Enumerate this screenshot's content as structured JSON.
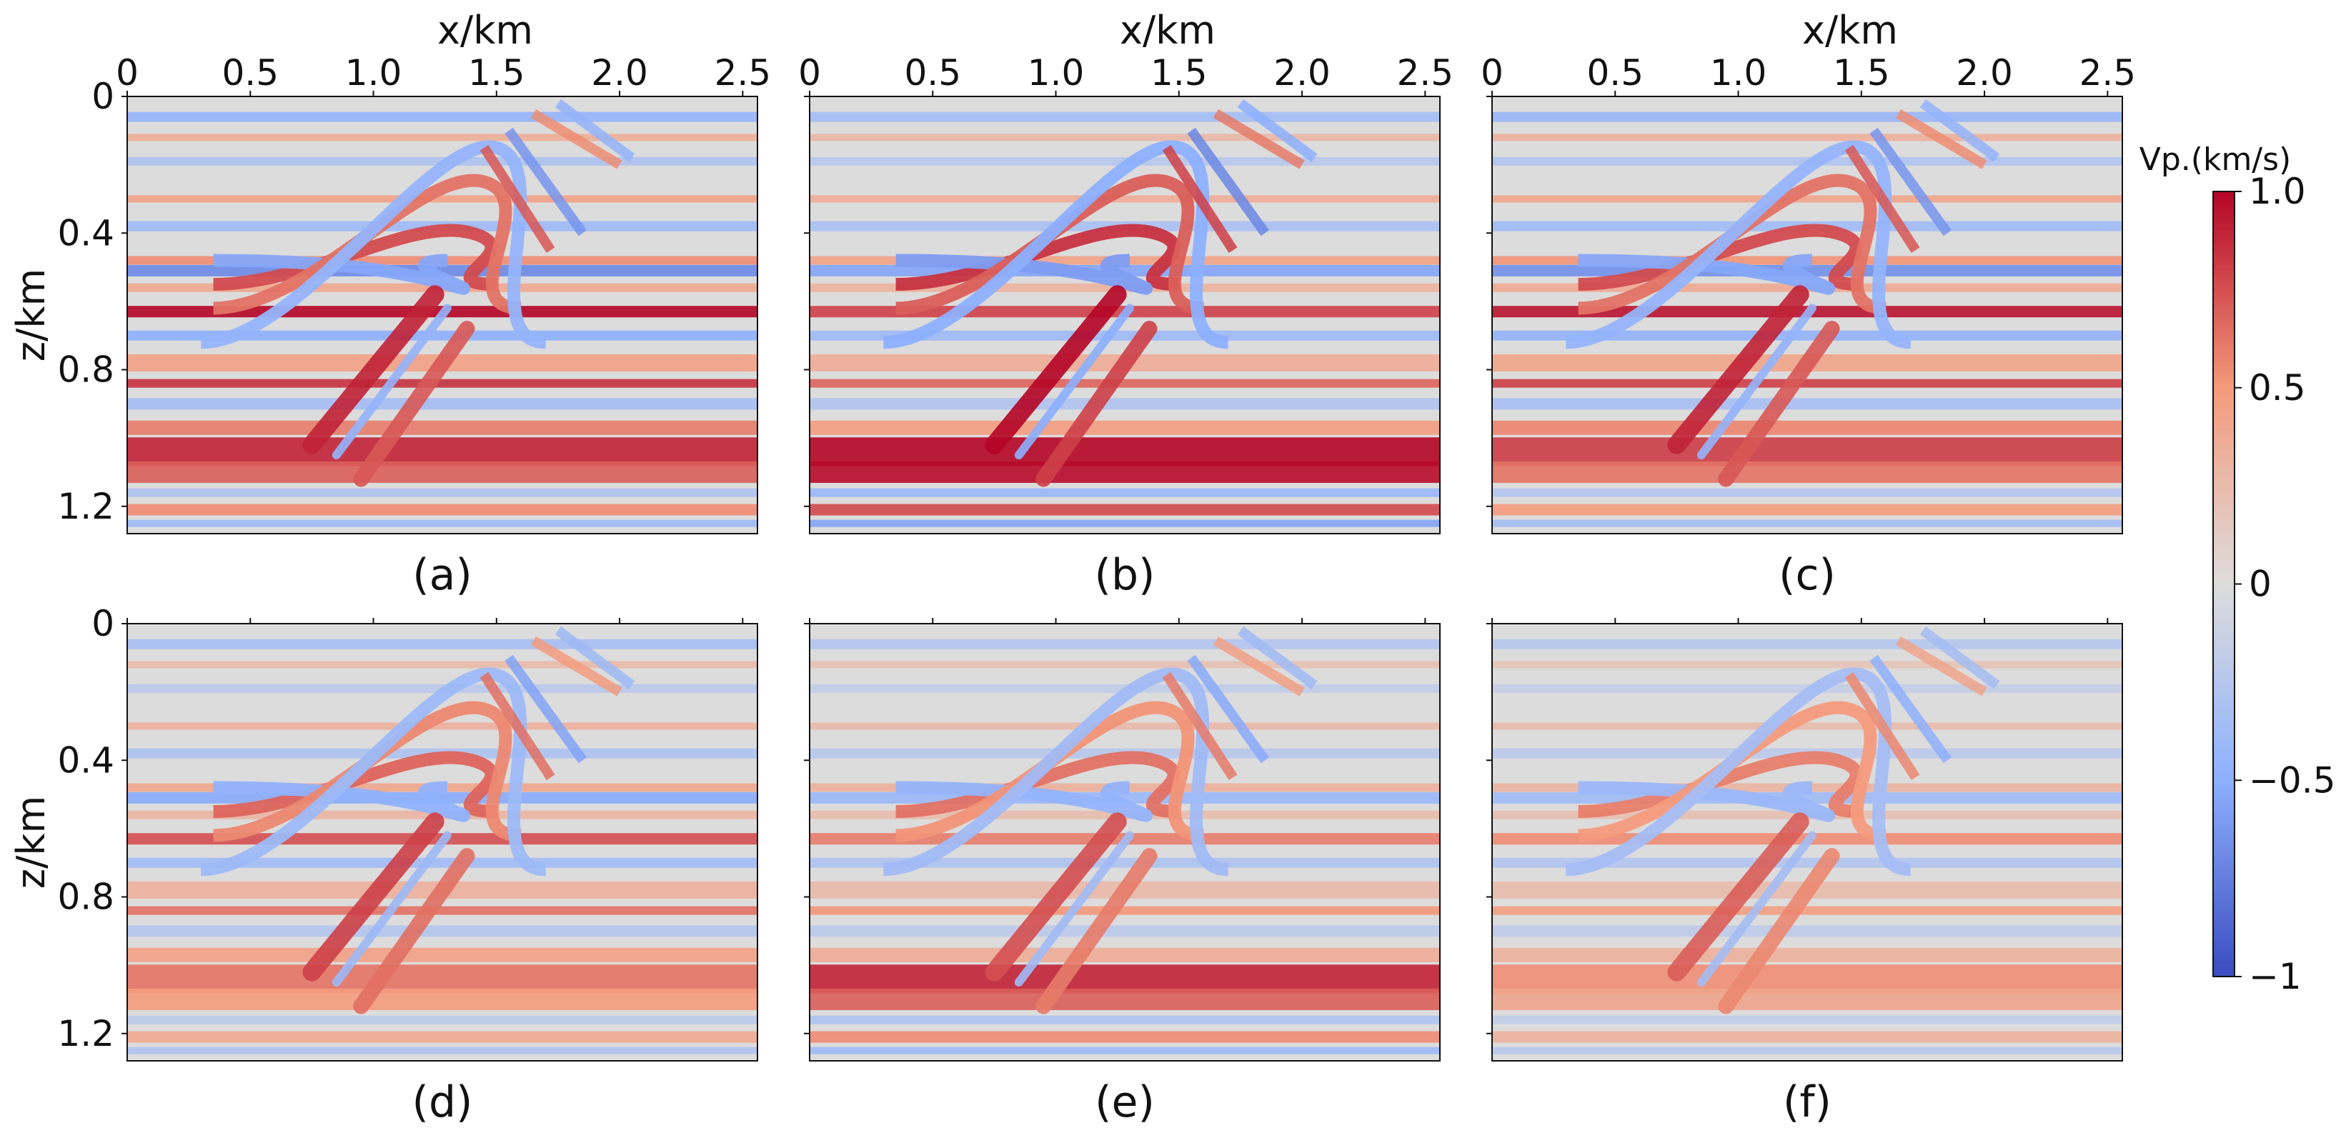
{
  "colors": {
    "cmap": [
      "#3b4cc0",
      "#dddcdc",
      "#b40426"
    ],
    "background": "#ffffff"
  },
  "chart_data": {
    "type": "heatmap",
    "colorbar": {
      "title": "Vp.(km/s)",
      "range": [
        -1.0,
        1.0
      ],
      "ticks": [
        1.0,
        0.5,
        0,
        -0.5,
        -1
      ],
      "tick_labels": [
        "1.0",
        "0.5",
        "0",
        "−0.5",
        "−1"
      ]
    },
    "x_axis": {
      "label": "x/km",
      "range": [
        0,
        2.56
      ],
      "ticks": [
        0,
        0.5,
        1.0,
        1.5,
        2.0,
        2.5
      ],
      "tick_labels": [
        "0",
        "0.5",
        "1.0",
        "1.5",
        "2.0",
        "2.5"
      ]
    },
    "y_axis": {
      "label": "z/km",
      "range": [
        0,
        1.28
      ],
      "inverted": true,
      "ticks": [
        0,
        0.4,
        0.8,
        1.2
      ],
      "tick_labels": [
        "0",
        "0.4",
        "0.8",
        "1.2"
      ]
    },
    "panels": [
      {
        "label": "(a)",
        "layer_amp": 1.0,
        "fault_amp": 0.9,
        "deep_amp": 1.0
      },
      {
        "label": "(b)",
        "layer_amp": 0.8,
        "fault_amp": 1.0,
        "deep_amp": 1.4
      },
      {
        "label": "(c)",
        "layer_amp": 0.95,
        "fault_amp": 0.9,
        "deep_amp": 0.9
      },
      {
        "label": "(d)",
        "layer_amp": 0.75,
        "fault_amp": 0.8,
        "deep_amp": 0.7
      },
      {
        "label": "(e)",
        "layer_amp": 0.6,
        "fault_amp": 0.75,
        "deep_amp": 1.0
      },
      {
        "label": "(f)",
        "layer_amp": 0.55,
        "fault_amp": 0.7,
        "deep_amp": 0.6
      }
    ]
  }
}
